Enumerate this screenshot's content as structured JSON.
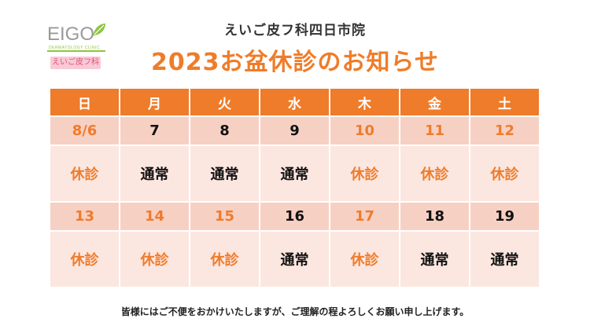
{
  "logo": {
    "word": "EIGO",
    "sub": "DERMATOLOGY CLINIC",
    "badge": "えいご皮フ科",
    "colors": {
      "green": "#8cc63f",
      "pink": "#f9c9d6",
      "badge_text": "#e4507a"
    }
  },
  "clinic_name": "えいご皮フ科四日市院",
  "title": "2023お盆休診のお知らせ",
  "weekdays": [
    "日",
    "月",
    "火",
    "水",
    "木",
    "金",
    "土"
  ],
  "weeks": [
    {
      "dates": [
        {
          "label": "8/6",
          "type": "off"
        },
        {
          "label": "7",
          "type": "open"
        },
        {
          "label": "8",
          "type": "open"
        },
        {
          "label": "9",
          "type": "open"
        },
        {
          "label": "10",
          "type": "off"
        },
        {
          "label": "11",
          "type": "off"
        },
        {
          "label": "12",
          "type": "off"
        }
      ],
      "statuses": [
        {
          "label": "休診",
          "type": "off"
        },
        {
          "label": "通常",
          "type": "open"
        },
        {
          "label": "通常",
          "type": "open"
        },
        {
          "label": "通常",
          "type": "open"
        },
        {
          "label": "休診",
          "type": "off"
        },
        {
          "label": "休診",
          "type": "off"
        },
        {
          "label": "休診",
          "type": "off"
        }
      ]
    },
    {
      "dates": [
        {
          "label": "13",
          "type": "off"
        },
        {
          "label": "14",
          "type": "off"
        },
        {
          "label": "15",
          "type": "off"
        },
        {
          "label": "16",
          "type": "open"
        },
        {
          "label": "17",
          "type": "off"
        },
        {
          "label": "18",
          "type": "open"
        },
        {
          "label": "19",
          "type": "open"
        }
      ],
      "statuses": [
        {
          "label": "休診",
          "type": "off"
        },
        {
          "label": "休診",
          "type": "off"
        },
        {
          "label": "休診",
          "type": "off"
        },
        {
          "label": "通常",
          "type": "open"
        },
        {
          "label": "休診",
          "type": "off"
        },
        {
          "label": "通常",
          "type": "open"
        },
        {
          "label": "通常",
          "type": "open"
        }
      ]
    }
  ],
  "note": "皆様にはご不便をおかけいたしますが、ご理解の程よろしくお願い申し上げます。",
  "colors": {
    "accent": "#ef7c2a",
    "date_row_bg": "#f7d0c4",
    "status_row_bg": "#fce6e0",
    "open_text": "#111111"
  }
}
